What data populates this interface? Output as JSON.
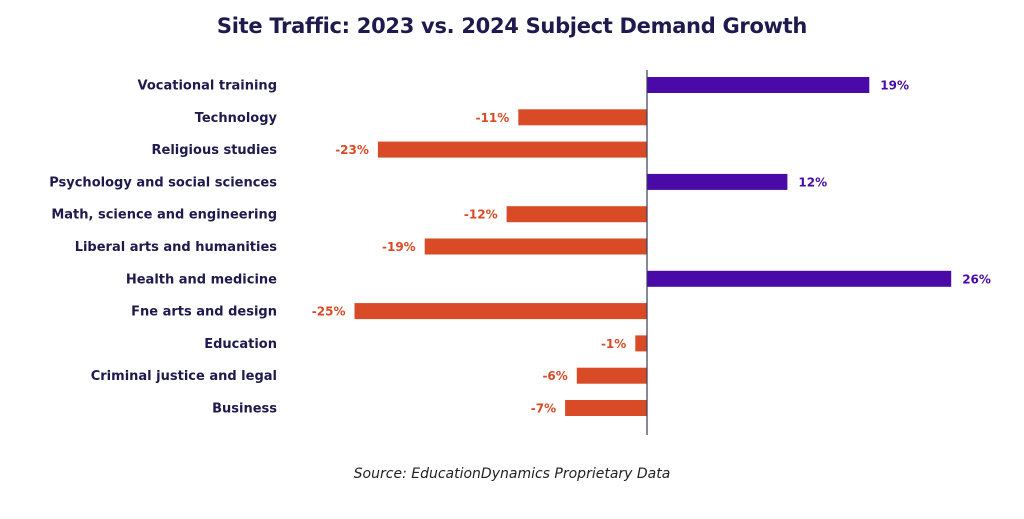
{
  "chart_data": {
    "type": "bar",
    "orientation": "horizontal",
    "title": "Site Traffic: 2023 vs. 2024 Subject Demand Growth",
    "categories": [
      "Vocational training",
      "Technology",
      "Religious studies",
      "Psychology and social sciences",
      "Math, science and engineering",
      "Liberal arts and humanities",
      "Health and medicine",
      "Fne arts and design",
      "Education",
      "Criminal justice and legal",
      "Business"
    ],
    "values": [
      19,
      -11,
      -23,
      12,
      -12,
      -19,
      26,
      -25,
      -1,
      -6,
      -7
    ],
    "value_labels": [
      "19%",
      "-11%",
      "-23%",
      "12%",
      "-12%",
      "-19%",
      "26%",
      "-25%",
      "-1%",
      "-6%",
      "-7%"
    ],
    "unit": "%",
    "colors": {
      "positive": "#4a0aa8",
      "negative": "#d94a26",
      "axis": "#3a3a5a",
      "label": "#1f1a4d"
    },
    "grid": false,
    "legend": false,
    "source": "Source: EducationDynamics Proprietary Data"
  }
}
